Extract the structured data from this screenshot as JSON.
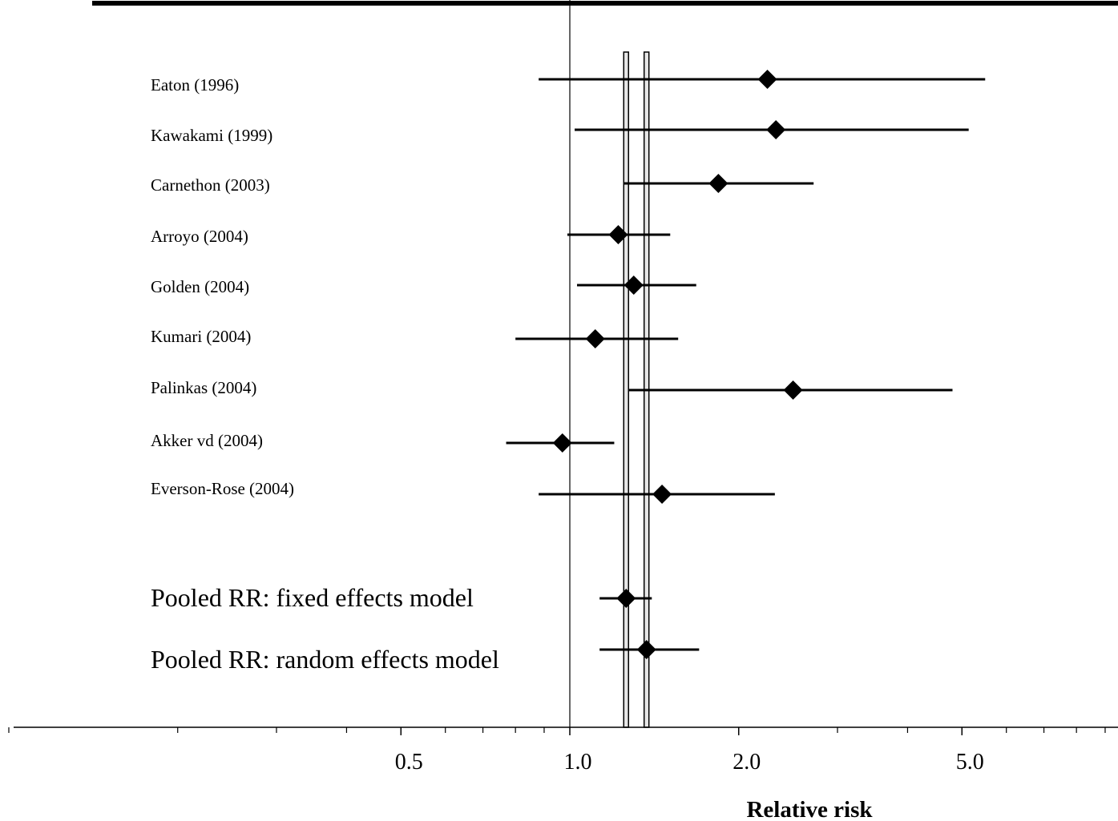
{
  "chart_data": {
    "type": "forest",
    "title": "",
    "xlabel": "Relative risk",
    "x_scale": "log",
    "xlim": [
      0.1,
      9.0
    ],
    "reference_line": 1.0,
    "x_ticks": [
      {
        "value": 0.5,
        "label": "0.5"
      },
      {
        "value": 1.0,
        "label": "1.0"
      },
      {
        "value": 2.0,
        "label": "2.0"
      },
      {
        "value": 5.0,
        "label": "5.0"
      }
    ],
    "minor_ticks": [
      0.1,
      0.2,
      0.3,
      0.4,
      0.6,
      0.7,
      0.8,
      0.9,
      3,
      4,
      6,
      7,
      8,
      9
    ],
    "pooled_bands": [
      {
        "name": "fixed",
        "value": 1.26
      },
      {
        "name": "random",
        "value": 1.37
      }
    ],
    "studies": [
      {
        "label": "Eaton (1996)",
        "rr": 2.25,
        "lower": 0.88,
        "upper": 5.5
      },
      {
        "label": "Kawakami (1999)",
        "rr": 2.33,
        "lower": 1.02,
        "upper": 5.14
      },
      {
        "label": "Carnethon (2003)",
        "rr": 1.84,
        "lower": 1.25,
        "upper": 2.72
      },
      {
        "label": "Arroyo (2004)",
        "rr": 1.22,
        "lower": 0.99,
        "upper": 1.51
      },
      {
        "label": "Golden (2004)",
        "rr": 1.3,
        "lower": 1.03,
        "upper": 1.68
      },
      {
        "label": "Kumari (2004)",
        "rr": 1.11,
        "lower": 0.8,
        "upper": 1.56
      },
      {
        "label": "Palinkas (2004)",
        "rr": 2.5,
        "lower": 1.27,
        "upper": 4.81
      },
      {
        "label": "Akker vd (2004)",
        "rr": 0.97,
        "lower": 0.77,
        "upper": 1.2
      },
      {
        "label": "Everson-Rose (2004)",
        "rr": 1.46,
        "lower": 0.88,
        "upper": 2.32
      }
    ],
    "pooled": [
      {
        "label": "Pooled RR: fixed effects model",
        "rr": 1.26,
        "lower": 1.13,
        "upper": 1.4
      },
      {
        "label": "Pooled RR: random effects model",
        "rr": 1.37,
        "lower": 1.13,
        "upper": 1.7
      }
    ]
  }
}
